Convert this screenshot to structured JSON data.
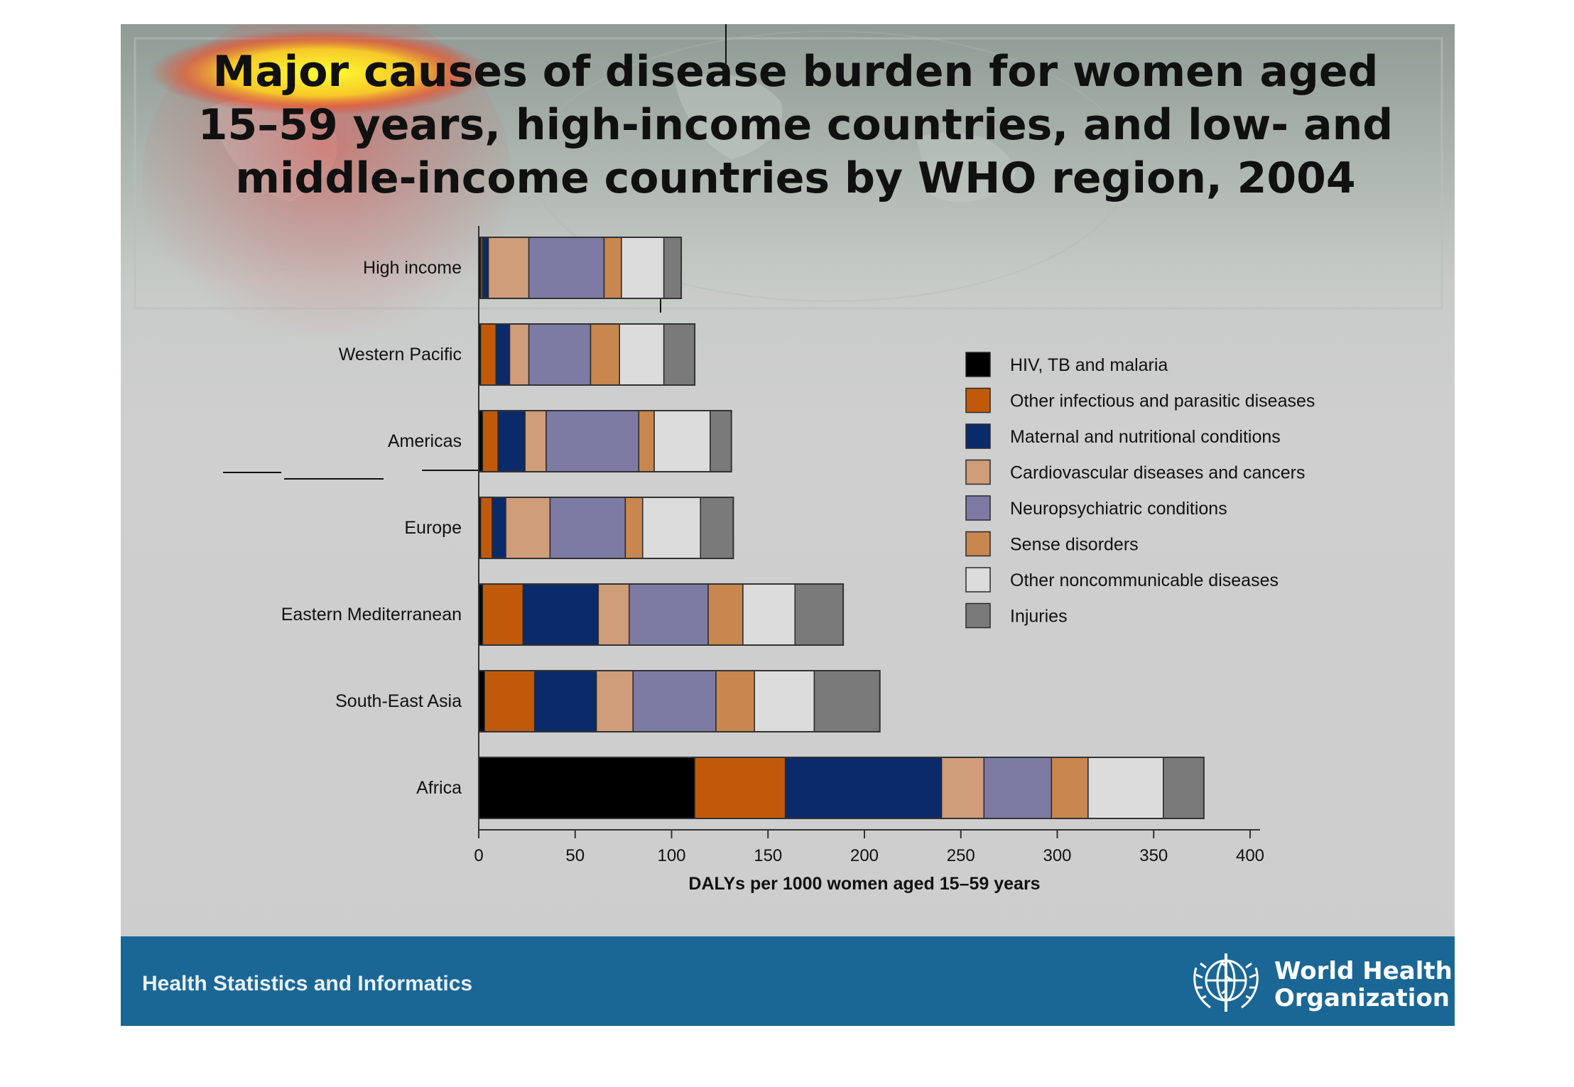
{
  "title": "Major causes of disease burden for women aged\n15–59 years, high-income countries, and low- and\nmiddle-income countries by WHO region, 2004",
  "footer": {
    "left_text": "Health Statistics and Informatics",
    "org_line1": "World Health",
    "org_line2": "Organization"
  },
  "chart_data": {
    "type": "bar",
    "orientation": "horizontal",
    "stacked": true,
    "categories": [
      "High income",
      "Western Pacific",
      "Americas",
      "Europe",
      "Eastern Mediterranean",
      "South-East Asia",
      "Africa"
    ],
    "series": [
      {
        "name": "HIV, TB and malaria",
        "color": "#000000",
        "values": [
          1,
          1,
          2,
          1,
          2,
          3,
          112
        ]
      },
      {
        "name": "Other infectious and parasitic diseases",
        "color": "#c05a0a",
        "values": [
          1,
          8,
          8,
          6,
          21,
          26,
          47
        ]
      },
      {
        "name": "Maternal and nutritional conditions",
        "color": "#0b2a6a",
        "values": [
          3,
          7,
          14,
          7,
          39,
          32,
          81
        ]
      },
      {
        "name": "Cardiovascular diseases and cancers",
        "color": "#cf9d7a",
        "values": [
          21,
          10,
          11,
          23,
          16,
          19,
          22
        ]
      },
      {
        "name": "Neuropsychiatric conditions",
        "color": "#7d7aa3",
        "values": [
          39,
          32,
          48,
          39,
          41,
          43,
          35
        ]
      },
      {
        "name": "Sense disorders",
        "color": "#c7874f",
        "values": [
          9,
          15,
          8,
          9,
          18,
          20,
          19
        ]
      },
      {
        "name": "Other noncommunicable diseases",
        "color": "#dcdcdc",
        "values": [
          22,
          23,
          29,
          30,
          27,
          31,
          39
        ]
      },
      {
        "name": "Injuries",
        "color": "#7a7a7a",
        "values": [
          9,
          16,
          11,
          17,
          25,
          34,
          21
        ]
      }
    ],
    "xlabel": "DALYs per 1000 women aged 15–59 years",
    "ylabel": "",
    "xlim": [
      0,
      400
    ],
    "xticks": [
      0,
      50,
      100,
      150,
      200,
      250,
      300,
      350,
      400
    ],
    "legend_position": "right",
    "grid": false
  }
}
